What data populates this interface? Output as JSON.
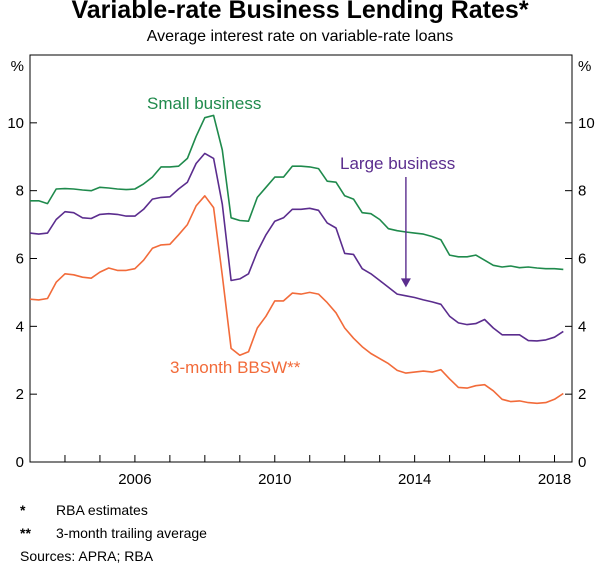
{
  "chart_data": {
    "type": "line",
    "title": "Variable-rate Business Lending Rates*",
    "subtitle": "Average interest rate on variable-rate loans",
    "ylabel_left": "%",
    "ylabel_right": "%",
    "ylim": [
      0,
      12
    ],
    "xlim": [
      2003.0,
      2018.5
    ],
    "yticks": [
      0,
      2,
      4,
      6,
      8,
      10
    ],
    "xticks": [
      2006,
      2010,
      2014,
      2018
    ],
    "series": [
      {
        "name": "Small business",
        "color": "#1f8a4c",
        "points": [
          [
            2003.0,
            7.7
          ],
          [
            2003.25,
            7.7
          ],
          [
            2003.5,
            7.62
          ],
          [
            2003.75,
            8.05
          ],
          [
            2004.0,
            8.06
          ],
          [
            2004.25,
            8.05
          ],
          [
            2004.5,
            8.02
          ],
          [
            2004.75,
            8.0
          ],
          [
            2005.0,
            8.1
          ],
          [
            2005.25,
            8.08
          ],
          [
            2005.5,
            8.05
          ],
          [
            2005.75,
            8.03
          ],
          [
            2006.0,
            8.05
          ],
          [
            2006.25,
            8.2
          ],
          [
            2006.5,
            8.4
          ],
          [
            2006.75,
            8.7
          ],
          [
            2007.0,
            8.7
          ],
          [
            2007.25,
            8.72
          ],
          [
            2007.5,
            8.95
          ],
          [
            2007.75,
            9.6
          ],
          [
            2008.0,
            10.15
          ],
          [
            2008.25,
            10.22
          ],
          [
            2008.5,
            9.2
          ],
          [
            2008.75,
            7.2
          ],
          [
            2009.0,
            7.12
          ],
          [
            2009.25,
            7.1
          ],
          [
            2009.5,
            7.8
          ],
          [
            2009.75,
            8.1
          ],
          [
            2010.0,
            8.4
          ],
          [
            2010.25,
            8.4
          ],
          [
            2010.5,
            8.72
          ],
          [
            2010.75,
            8.72
          ],
          [
            2011.0,
            8.7
          ],
          [
            2011.25,
            8.65
          ],
          [
            2011.5,
            8.28
          ],
          [
            2011.75,
            8.25
          ],
          [
            2012.0,
            7.85
          ],
          [
            2012.25,
            7.75
          ],
          [
            2012.5,
            7.35
          ],
          [
            2012.75,
            7.32
          ],
          [
            2013.0,
            7.15
          ],
          [
            2013.25,
            6.88
          ],
          [
            2013.5,
            6.82
          ],
          [
            2013.75,
            6.78
          ],
          [
            2014.0,
            6.75
          ],
          [
            2014.25,
            6.72
          ],
          [
            2014.5,
            6.65
          ],
          [
            2014.75,
            6.55
          ],
          [
            2015.0,
            6.1
          ],
          [
            2015.25,
            6.05
          ],
          [
            2015.5,
            6.05
          ],
          [
            2015.75,
            6.1
          ],
          [
            2016.0,
            5.95
          ],
          [
            2016.25,
            5.8
          ],
          [
            2016.5,
            5.75
          ],
          [
            2016.75,
            5.78
          ],
          [
            2017.0,
            5.73
          ],
          [
            2017.25,
            5.75
          ],
          [
            2017.5,
            5.72
          ],
          [
            2017.75,
            5.7
          ],
          [
            2018.0,
            5.7
          ],
          [
            2018.25,
            5.68
          ]
        ]
      },
      {
        "name": "Large business",
        "color": "#5b2d8e",
        "points": [
          [
            2003.0,
            6.75
          ],
          [
            2003.25,
            6.72
          ],
          [
            2003.5,
            6.75
          ],
          [
            2003.75,
            7.15
          ],
          [
            2004.0,
            7.38
          ],
          [
            2004.25,
            7.35
          ],
          [
            2004.5,
            7.2
          ],
          [
            2004.75,
            7.18
          ],
          [
            2005.0,
            7.3
          ],
          [
            2005.25,
            7.32
          ],
          [
            2005.5,
            7.3
          ],
          [
            2005.75,
            7.25
          ],
          [
            2006.0,
            7.25
          ],
          [
            2006.25,
            7.45
          ],
          [
            2006.5,
            7.75
          ],
          [
            2006.75,
            7.8
          ],
          [
            2007.0,
            7.82
          ],
          [
            2007.25,
            8.05
          ],
          [
            2007.5,
            8.25
          ],
          [
            2007.75,
            8.8
          ],
          [
            2008.0,
            9.1
          ],
          [
            2008.25,
            8.95
          ],
          [
            2008.5,
            7.6
          ],
          [
            2008.75,
            5.35
          ],
          [
            2009.0,
            5.4
          ],
          [
            2009.25,
            5.55
          ],
          [
            2009.5,
            6.2
          ],
          [
            2009.75,
            6.7
          ],
          [
            2010.0,
            7.1
          ],
          [
            2010.25,
            7.2
          ],
          [
            2010.5,
            7.45
          ],
          [
            2010.75,
            7.45
          ],
          [
            2011.0,
            7.48
          ],
          [
            2011.25,
            7.42
          ],
          [
            2011.5,
            7.05
          ],
          [
            2011.75,
            6.9
          ],
          [
            2012.0,
            6.15
          ],
          [
            2012.25,
            6.12
          ],
          [
            2012.5,
            5.7
          ],
          [
            2012.75,
            5.55
          ],
          [
            2013.0,
            5.35
          ],
          [
            2013.25,
            5.15
          ],
          [
            2013.5,
            4.95
          ],
          [
            2013.75,
            4.9
          ],
          [
            2014.0,
            4.85
          ],
          [
            2014.25,
            4.78
          ],
          [
            2014.5,
            4.72
          ],
          [
            2014.75,
            4.65
          ],
          [
            2015.0,
            4.3
          ],
          [
            2015.25,
            4.1
          ],
          [
            2015.5,
            4.05
          ],
          [
            2015.75,
            4.08
          ],
          [
            2016.0,
            4.2
          ],
          [
            2016.25,
            3.95
          ],
          [
            2016.5,
            3.75
          ],
          [
            2016.75,
            3.75
          ],
          [
            2017.0,
            3.75
          ],
          [
            2017.25,
            3.58
          ],
          [
            2017.5,
            3.57
          ],
          [
            2017.75,
            3.6
          ],
          [
            2018.0,
            3.68
          ],
          [
            2018.25,
            3.85
          ]
        ]
      },
      {
        "name": "3-month BBSW**",
        "color": "#f26b3a",
        "points": [
          [
            2003.0,
            4.8
          ],
          [
            2003.25,
            4.78
          ],
          [
            2003.5,
            4.82
          ],
          [
            2003.75,
            5.3
          ],
          [
            2004.0,
            5.55
          ],
          [
            2004.25,
            5.52
          ],
          [
            2004.5,
            5.45
          ],
          [
            2004.75,
            5.42
          ],
          [
            2005.0,
            5.6
          ],
          [
            2005.25,
            5.72
          ],
          [
            2005.5,
            5.65
          ],
          [
            2005.75,
            5.65
          ],
          [
            2006.0,
            5.7
          ],
          [
            2006.25,
            5.95
          ],
          [
            2006.5,
            6.3
          ],
          [
            2006.75,
            6.4
          ],
          [
            2007.0,
            6.42
          ],
          [
            2007.25,
            6.7
          ],
          [
            2007.5,
            7.0
          ],
          [
            2007.75,
            7.55
          ],
          [
            2008.0,
            7.85
          ],
          [
            2008.25,
            7.5
          ],
          [
            2008.5,
            5.5
          ],
          [
            2008.75,
            3.35
          ],
          [
            2009.0,
            3.15
          ],
          [
            2009.25,
            3.25
          ],
          [
            2009.5,
            3.95
          ],
          [
            2009.75,
            4.3
          ],
          [
            2010.0,
            4.75
          ],
          [
            2010.25,
            4.75
          ],
          [
            2010.5,
            4.98
          ],
          [
            2010.75,
            4.95
          ],
          [
            2011.0,
            5.0
          ],
          [
            2011.25,
            4.95
          ],
          [
            2011.5,
            4.7
          ],
          [
            2011.75,
            4.4
          ],
          [
            2012.0,
            3.95
          ],
          [
            2012.25,
            3.65
          ],
          [
            2012.5,
            3.4
          ],
          [
            2012.75,
            3.2
          ],
          [
            2013.0,
            3.05
          ],
          [
            2013.25,
            2.9
          ],
          [
            2013.5,
            2.7
          ],
          [
            2013.75,
            2.62
          ],
          [
            2014.0,
            2.65
          ],
          [
            2014.25,
            2.68
          ],
          [
            2014.5,
            2.65
          ],
          [
            2014.75,
            2.72
          ],
          [
            2015.0,
            2.45
          ],
          [
            2015.25,
            2.2
          ],
          [
            2015.5,
            2.18
          ],
          [
            2015.75,
            2.25
          ],
          [
            2016.0,
            2.28
          ],
          [
            2016.25,
            2.1
          ],
          [
            2016.5,
            1.85
          ],
          [
            2016.75,
            1.78
          ],
          [
            2017.0,
            1.8
          ],
          [
            2017.25,
            1.75
          ],
          [
            2017.5,
            1.73
          ],
          [
            2017.75,
            1.75
          ],
          [
            2018.0,
            1.85
          ],
          [
            2018.25,
            2.02
          ]
        ]
      }
    ],
    "annotations": [
      {
        "series": 0,
        "text": "Small business"
      },
      {
        "series": 1,
        "text": "Large business",
        "arrow_to": [
          2013.75,
          5.15
        ]
      },
      {
        "series": 2,
        "text": "3-month BBSW**"
      }
    ],
    "grid": false
  },
  "notes": [
    {
      "mark": "*",
      "text": "RBA estimates"
    },
    {
      "mark": "**",
      "text": "3-month trailing average"
    }
  ],
  "sources": "Sources: APRA; RBA"
}
